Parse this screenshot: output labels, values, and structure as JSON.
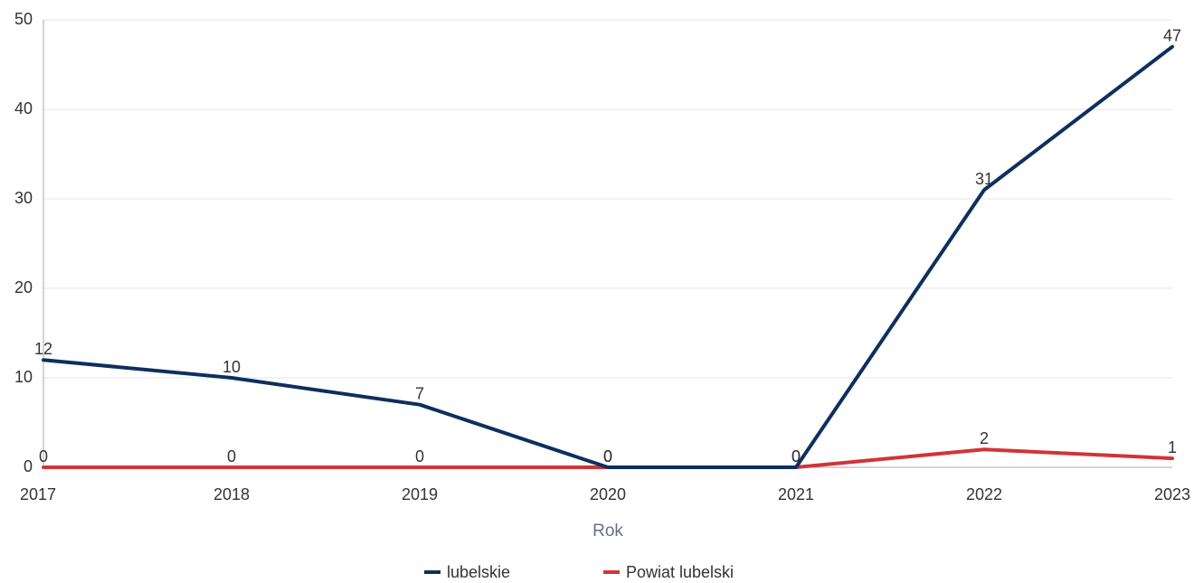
{
  "chart_data": {
    "type": "line",
    "x": [
      "2017",
      "2018",
      "2019",
      "2020",
      "2021",
      "2022",
      "2023"
    ],
    "series": [
      {
        "name": "lubelskie",
        "values": [
          12,
          10,
          7,
          0,
          0,
          31,
          47
        ],
        "color": "#0e2f5e"
      },
      {
        "name": "Powiat lubelski",
        "values": [
          0,
          0,
          0,
          0,
          0,
          2,
          1
        ],
        "color": "#d13438"
      }
    ],
    "xlabel": "Rok",
    "ylabel": "",
    "ylim": [
      0,
      50
    ],
    "yticks": [
      0,
      10,
      20,
      30,
      40,
      50
    ],
    "grid": true,
    "legend": "bottom-center"
  }
}
